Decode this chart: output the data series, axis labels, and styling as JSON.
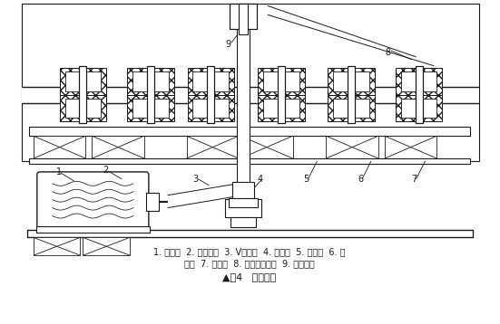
{
  "title": "▲图4   传动机构",
  "caption_line1": "1. 电动机  2. 小皮带轮  3. V型皮带  4. 驱动轴  5. 轴承座  6. 联",
  "caption_line2": "轴器  7. 传动轴  8. 皮带轮防护罩  9. 大皮带轮",
  "bg_color": "#ffffff",
  "line_color": "#1a1a1a",
  "fig_width": 5.51,
  "fig_height": 3.58,
  "dpi": 100
}
